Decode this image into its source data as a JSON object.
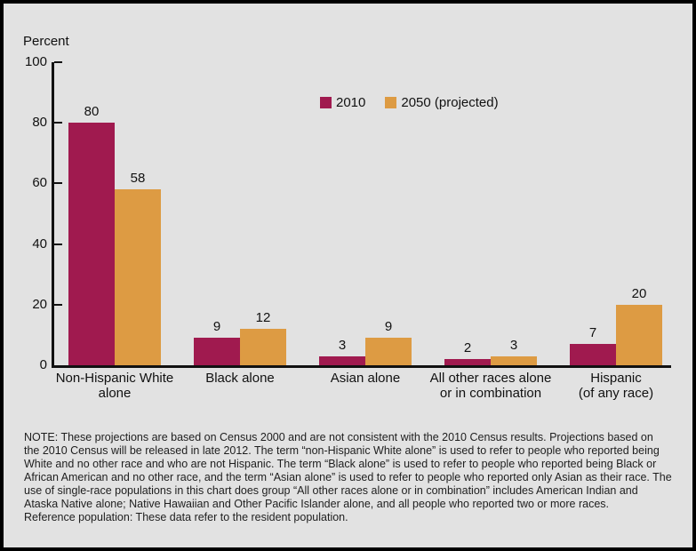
{
  "chart": {
    "y_axis_title": "Percent",
    "background_color": "#e2e2e2",
    "axis_color": "#111111"
  },
  "chart_data": {
    "type": "bar",
    "title": "",
    "ylabel": "Percent",
    "xlabel": "",
    "ylim": [
      0,
      100
    ],
    "yticks": [
      0,
      20,
      40,
      60,
      80,
      100
    ],
    "grid": false,
    "legend_position": "top-center",
    "value_labels": true,
    "categories": [
      "Non-Hispanic White\nalone",
      "Black alone",
      "Asian alone",
      "All other races alone\nor in combination",
      "Hispanic\n(of any race)"
    ],
    "series": [
      {
        "name": "2010",
        "color": "#a01a4f",
        "values": [
          80,
          9,
          3,
          2,
          7
        ]
      },
      {
        "name": "2050 (projected)",
        "color": "#dd9b43",
        "values": [
          58,
          12,
          9,
          3,
          20
        ]
      }
    ]
  },
  "note": {
    "lines": [
      "NOTE: These projections are based on Census 2000 and are not consistent with the 2010 Census results. Projections based on",
      "the 2010 Census will be released in late 2012. The term “non-Hispanic White alone” is used to refer to people who reported being",
      "White and no other race and who are not Hispanic. The term “Black alone” is used to refer to people who reported being Black or",
      "African American and no other race, and the term “Asian alone” is used to refer to people who reported only Asian as their race. The",
      "use of single-race populations in this chart does group “All other races alone or in combination” includes American Indian and",
      "Ataska Native alone; Native Hawaiian and Other Pacific Islander alone, and all people who reported two or more races.",
      "Reference population: These data refer to the resident population."
    ]
  }
}
